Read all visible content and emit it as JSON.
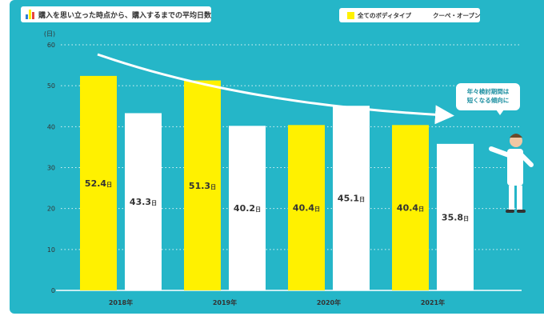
{
  "colors": {
    "background": "#25b6c8",
    "series_all": "#fff100",
    "series_coupe": "#ffffff",
    "text": "#333333",
    "callout_text": "#1a8ea0"
  },
  "chart_data": {
    "type": "bar",
    "title": "購入を思い立った時点から、購入するまでの平均日数",
    "ylabel": "(日)",
    "xlabel": "",
    "ylim": [
      0,
      60
    ],
    "yticks": [
      0,
      10,
      20,
      30,
      40,
      50,
      60
    ],
    "grid": true,
    "legend_position": "top-right",
    "categories": [
      "2018年",
      "2019年",
      "2020年",
      "2021年"
    ],
    "value_suffix": "日",
    "series": [
      {
        "name": "全てのボディタイプ",
        "color": "#fff100",
        "values": [
          52.4,
          51.3,
          40.4,
          40.4
        ]
      },
      {
        "name": "クーペ・オープン",
        "color": "#ffffff",
        "values": [
          43.3,
          40.2,
          45.1,
          35.8
        ]
      }
    ],
    "annotation": {
      "lines": [
        "年々検討期間は",
        "短くなる傾向に"
      ]
    }
  }
}
